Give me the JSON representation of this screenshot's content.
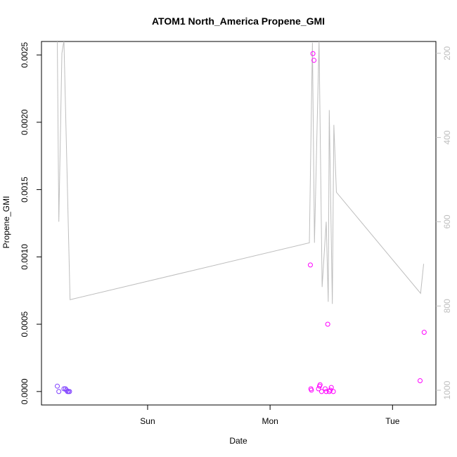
{
  "chart_data": {
    "type": "scatter",
    "title": "ATOM1 North_America Propene_GMI",
    "xlabel": "Date",
    "ylabel": "Propene_GMI",
    "x_ticks": [
      "Sun",
      "Mon",
      "Tue"
    ],
    "x_tick_hours": [
      24,
      48,
      72
    ],
    "xlim_hours": [
      3.2,
      80.5
    ],
    "ylim": [
      -0.0001,
      0.0026
    ],
    "y_ticks": [
      0.0,
      0.0005,
      0.001,
      0.0015,
      0.002,
      0.0025
    ],
    "y_tick_labels": [
      "0.0000",
      "0.0005",
      "0.0010",
      "0.0015",
      "0.0020",
      "0.0025"
    ],
    "y2_lim": [
      1035,
      172
    ],
    "y2_ticks": [
      200,
      400,
      600,
      800,
      1000
    ],
    "y2_tick_labels": [
      "200",
      "400",
      "600",
      "800",
      "1000"
    ],
    "colors": {
      "line": "#bebebe",
      "points_early": "#7f3fff",
      "points_later": "#ff00ff",
      "axis": "#000000",
      "right_axis": "#bebebe"
    },
    "series": [
      {
        "values": [
          {
            "x": 6.3,
            "y": 4e-05
          },
          {
            "x": 6.6,
            "y": 0.0
          },
          {
            "x": 7.6,
            "y": 2e-05
          },
          {
            "x": 7.9,
            "y": 2e-05
          },
          {
            "x": 8.1,
            "y": 1e-05
          },
          {
            "x": 8.3,
            "y": 0.0
          },
          {
            "x": 8.5,
            "y": 0.0
          },
          {
            "x": 8.7,
            "y": 0.0
          },
          {
            "x": 55.9,
            "y": 0.00094
          },
          {
            "x": 56.0,
            "y": 2e-05
          },
          {
            "x": 56.1,
            "y": 1e-05
          },
          {
            "x": 56.4,
            "y": 0.00251
          },
          {
            "x": 56.6,
            "y": 0.00246
          },
          {
            "x": 57.5,
            "y": 2e-05
          },
          {
            "x": 57.7,
            "y": 4e-05
          },
          {
            "x": 57.8,
            "y": 5e-05
          },
          {
            "x": 58.1,
            "y": 0.0
          },
          {
            "x": 58.8,
            "y": 2e-05
          },
          {
            "x": 59.0,
            "y": 0.0
          },
          {
            "x": 59.3,
            "y": 0.0005
          },
          {
            "x": 59.6,
            "y": 0.0
          },
          {
            "x": 59.8,
            "y": 1e-05
          },
          {
            "x": 60.0,
            "y": 3e-05
          },
          {
            "x": 60.4,
            "y": 0.0
          },
          {
            "x": 77.4,
            "y": 8e-05
          },
          {
            "x": 78.2,
            "y": 0.00044
          }
        ]
      },
      {
        "axis": "right",
        "values": [
          {
            "x": 6.3,
            "y": 170
          },
          {
            "x": 6.6,
            "y": 600
          },
          {
            "x": 7.2,
            "y": 200
          },
          {
            "x": 7.6,
            "y": 170
          },
          {
            "x": 8.8,
            "y": 785
          },
          {
            "x": 55.7,
            "y": 650
          },
          {
            "x": 56.3,
            "y": 175
          },
          {
            "x": 56.7,
            "y": 650
          },
          {
            "x": 57.6,
            "y": 170
          },
          {
            "x": 58.2,
            "y": 755
          },
          {
            "x": 59.0,
            "y": 600
          },
          {
            "x": 59.4,
            "y": 790
          },
          {
            "x": 59.6,
            "y": 335
          },
          {
            "x": 60.2,
            "y": 795
          },
          {
            "x": 60.5,
            "y": 370
          },
          {
            "x": 61.0,
            "y": 530
          },
          {
            "x": 77.5,
            "y": 770
          },
          {
            "x": 78.1,
            "y": 700
          }
        ]
      }
    ]
  }
}
